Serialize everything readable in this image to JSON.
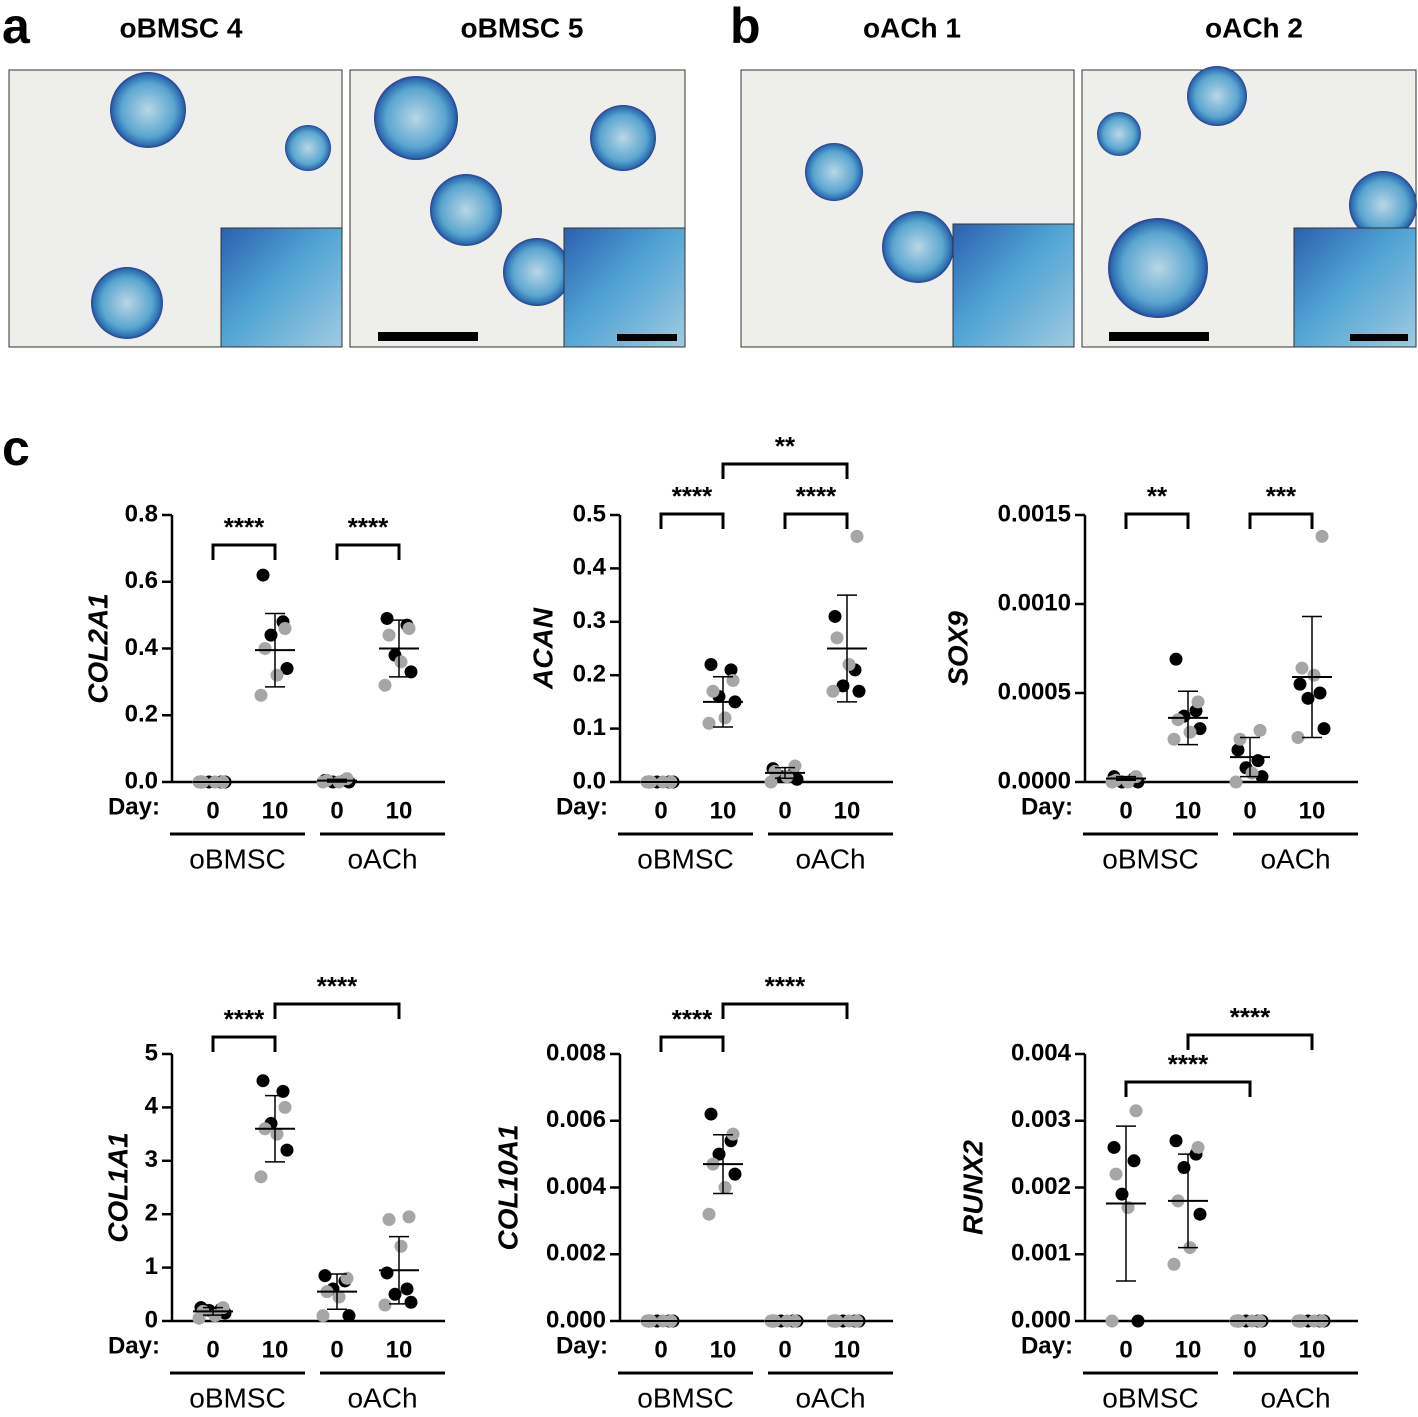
{
  "figure": {
    "panel_labels": [
      "a",
      "b",
      "c"
    ],
    "image_titles": [
      "oBMSC 4",
      "oBMSC 5",
      "oACh 1",
      "oACh 2"
    ]
  },
  "chart_data": [
    {
      "type": "dotplot",
      "ylabel": "COL2A1",
      "xprefix": "Day:",
      "categories": [
        "0",
        "10",
        "0",
        "10"
      ],
      "groups": [
        "oBMSC",
        "oACh"
      ],
      "ylim": [
        0,
        0.8
      ],
      "yticks": [
        {
          "value": 0,
          "label": "0.0"
        },
        0.2,
        0.4,
        0.6,
        0.8
      ],
      "series": [
        {
          "color": "#000000",
          "values": [
            [
              0,
              0,
              0,
              0
            ],
            [
              0.62,
              0.48,
              0.44,
              0.34
            ],
            [
              0.005,
              0.005,
              0,
              0
            ],
            [
              0.49,
              0.47,
              0.38,
              0.33
            ]
          ]
        },
        {
          "color": "#a6a6a6",
          "values": [
            [
              0,
              0,
              0,
              0
            ],
            [
              0.46,
              0.4,
              0.32,
              0.26
            ],
            [
              0.01,
              0.005,
              0,
              0
            ],
            [
              0.46,
              0.44,
              0.36,
              0.29
            ]
          ]
        }
      ],
      "means": [
        0,
        0.395,
        0.004,
        0.4
      ],
      "sd": [
        0,
        0.11,
        0.004,
        0.085
      ],
      "brackets": [
        {
          "from": 0,
          "to": 1,
          "label": "****"
        },
        {
          "from": 2,
          "to": 3,
          "label": "****"
        }
      ]
    },
    {
      "type": "dotplot",
      "ylabel": "ACAN",
      "xprefix": "Day:",
      "categories": [
        "0",
        "10",
        "0",
        "10"
      ],
      "groups": [
        "oBMSC",
        "oACh"
      ],
      "ylim": [
        0,
        0.5
      ],
      "yticks": [
        {
          "value": 0,
          "label": "0.0"
        },
        0.1,
        0.2,
        0.3,
        0.4,
        0.5
      ],
      "series": [
        {
          "color": "#000000",
          "values": [
            [
              0,
              0,
              0,
              0
            ],
            [
              0.22,
              0.21,
              0.16,
              0.15
            ],
            [
              0.025,
              0.015,
              0.01,
              0.005
            ],
            [
              0.31,
              0.21,
              0.18,
              0.17
            ]
          ]
        },
        {
          "color": "#a6a6a6",
          "values": [
            [
              0,
              0,
              0,
              0
            ],
            [
              0.19,
              0.17,
              0.12,
              0.11
            ],
            [
              0.03,
              0.02,
              0.01,
              0
            ],
            [
              0.46,
              0.27,
              0.22,
              0.17
            ]
          ]
        }
      ],
      "means": [
        0,
        0.15,
        0.017,
        0.25
      ],
      "sd": [
        0,
        0.047,
        0.01,
        0.1
      ],
      "brackets": [
        {
          "from": 0,
          "to": 1,
          "label": "****"
        },
        {
          "from": 2,
          "to": 3,
          "label": "****"
        },
        {
          "from": 1,
          "to": 3,
          "label": "**"
        }
      ]
    },
    {
      "type": "dotplot",
      "ylabel": "SOX9",
      "xprefix": "Day:",
      "categories": [
        "0",
        "10",
        "0",
        "10"
      ],
      "groups": [
        "oBMSC",
        "oACh"
      ],
      "ylim": [
        0,
        0.0015
      ],
      "yticks": [
        {
          "value": 0,
          "label": "0.0000"
        },
        {
          "value": 0.0005,
          "label": "0.0005"
        },
        {
          "value": 0.001,
          "label": "0.0010"
        },
        {
          "value": 0.0015,
          "label": "0.0015"
        }
      ],
      "series": [
        {
          "color": "#000000",
          "values": [
            [
              3e-05,
              2e-05,
              0,
              0
            ],
            [
              0.00069,
              0.0004,
              0.00037,
              0.0003
            ],
            [
              0.00018,
              0.00012,
              8e-05,
              3e-05
            ],
            [
              0.00055,
              0.0005,
              0.00047,
              0.0003
            ]
          ]
        },
        {
          "color": "#a6a6a6",
          "values": [
            [
              3e-05,
              1e-05,
              0,
              0
            ],
            [
              0.00045,
              0.00035,
              0.00028,
              0.00024
            ],
            [
              0.00029,
              0.00024,
              5e-05,
              0
            ],
            [
              0.00138,
              0.00064,
              0.0006,
              0.00025
            ]
          ]
        }
      ],
      "means": [
        2e-05,
        0.00036,
        0.00014,
        0.00059
      ],
      "sd": [
        1e-05,
        0.00015,
        0.00011,
        0.00034
      ],
      "brackets": [
        {
          "from": 0,
          "to": 1,
          "label": "**"
        },
        {
          "from": 2,
          "to": 3,
          "label": "***"
        }
      ]
    },
    {
      "type": "dotplot",
      "ylabel": "COL1A1",
      "xprefix": "Day:",
      "categories": [
        "0",
        "10",
        "0",
        "10"
      ],
      "groups": [
        "oBMSC",
        "oACh"
      ],
      "ylim": [
        0,
        5
      ],
      "yticks": [
        0,
        1,
        2,
        3,
        4,
        5
      ],
      "series": [
        {
          "color": "#000000",
          "values": [
            [
              0.25,
              0.22,
              0.2,
              0.15
            ],
            [
              4.5,
              4.3,
              3.7,
              3.2
            ],
            [
              0.85,
              0.75,
              0.6,
              0.1
            ],
            [
              0.9,
              0.6,
              0.5,
              0.35
            ]
          ]
        },
        {
          "color": "#a6a6a6",
          "values": [
            [
              0.25,
              0.18,
              0.1,
              0.05
            ],
            [
              4,
              3.6,
              3.5,
              2.7
            ],
            [
              0.8,
              0.55,
              0.45,
              0.1
            ],
            [
              1.95,
              1.9,
              1.4,
              0.3
            ]
          ]
        }
      ],
      "means": [
        0.18,
        3.6,
        0.55,
        0.95
      ],
      "sd": [
        0.07,
        0.62,
        0.33,
        0.63
      ],
      "brackets": [
        {
          "from": 0,
          "to": 1,
          "label": "****"
        },
        {
          "from": 1,
          "to": 3,
          "label": "****"
        }
      ]
    },
    {
      "type": "dotplot",
      "ylabel": "COL10A1",
      "xprefix": "Day:",
      "categories": [
        "0",
        "10",
        "0",
        "10"
      ],
      "groups": [
        "oBMSC",
        "oACh"
      ],
      "ylim": [
        0,
        0.008
      ],
      "yticks": [
        {
          "value": 0,
          "label": "0.000"
        },
        {
          "value": 0.002,
          "label": "0.002"
        },
        {
          "value": 0.004,
          "label": "0.004"
        },
        {
          "value": 0.006,
          "label": "0.006"
        },
        {
          "value": 0.008,
          "label": "0.008"
        }
      ],
      "series": [
        {
          "color": "#000000",
          "values": [
            [
              0,
              0,
              0,
              0
            ],
            [
              0.0062,
              0.0054,
              0.005,
              0.0044
            ],
            [
              0,
              0,
              0,
              0
            ],
            [
              0,
              0,
              0,
              0
            ]
          ]
        },
        {
          "color": "#a6a6a6",
          "values": [
            [
              0,
              0,
              0,
              0
            ],
            [
              0.0056,
              0.0047,
              0.004,
              0.0032
            ],
            [
              0,
              0,
              0,
              0
            ],
            [
              0,
              0,
              0,
              0
            ]
          ]
        }
      ],
      "means": [
        0,
        0.0047,
        0,
        0
      ],
      "sd": [
        0,
        0.00088,
        0,
        0
      ],
      "brackets": [
        {
          "from": 0,
          "to": 1,
          "label": "****"
        },
        {
          "from": 1,
          "to": 3,
          "label": "****"
        }
      ]
    },
    {
      "type": "dotplot",
      "ylabel": "RUNX2",
      "xprefix": "Day:",
      "categories": [
        "0",
        "10",
        "0",
        "10"
      ],
      "groups": [
        "oBMSC",
        "oACh"
      ],
      "ylim": [
        0,
        0.004
      ],
      "yticks": [
        {
          "value": 0,
          "label": "0.000"
        },
        {
          "value": 0.001,
          "label": "0.001"
        },
        {
          "value": 0.002,
          "label": "0.002"
        },
        {
          "value": 0.003,
          "label": "0.003"
        },
        {
          "value": 0.004,
          "label": "0.004"
        }
      ],
      "series": [
        {
          "color": "#000000",
          "values": [
            [
              0.0026,
              0.0024,
              0.0019,
              0
            ],
            [
              0.0027,
              0.0025,
              0.0023,
              0.0016
            ],
            [
              0,
              0,
              0,
              0
            ],
            [
              0,
              0,
              0,
              0
            ]
          ]
        },
        {
          "color": "#a6a6a6",
          "values": [
            [
              0.00315,
              0.0022,
              0.0017,
              0
            ],
            [
              0.0026,
              0.0018,
              0.0011,
              0.00085
            ],
            [
              0,
              0,
              0,
              0
            ],
            [
              0,
              0,
              0,
              0
            ]
          ]
        }
      ],
      "means": [
        0.00176,
        0.0018,
        0,
        0
      ],
      "sd": [
        0.00116,
        0.0007,
        0,
        0
      ],
      "brackets": [
        {
          "from": 0,
          "to": 2,
          "label": "****"
        },
        {
          "from": 1,
          "to": 3,
          "label": "****"
        }
      ]
    }
  ]
}
